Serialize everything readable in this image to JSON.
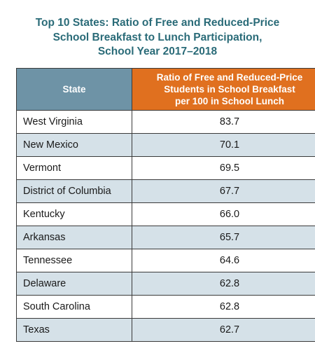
{
  "title_lines": [
    "Top 10 States: Ratio of Free and Reduced-Price",
    "School Breakfast to Lunch Participation,",
    "School Year 2017–2018"
  ],
  "colors": {
    "title": "#2a6b78",
    "header_state_bg": "#6e93a6",
    "header_ratio_bg": "#e0701f",
    "row_even_bg": "#ffffff",
    "row_odd_bg": "#d5e1e8",
    "border": "#3a3a3a"
  },
  "chart_data": {
    "type": "table",
    "title": "Top 10 States: Ratio of Free and Reduced-Price School Breakfast to Lunch Participation, School Year 2017–2018",
    "columns": [
      "State",
      "Ratio of Free and Reduced-Price Students in School Breakfast per 100 in School Lunch"
    ],
    "header_lines": [
      [
        "State"
      ],
      [
        "Ratio of Free and Reduced-Price",
        "Students in School Breakfast",
        "per 100 in School Lunch"
      ]
    ],
    "rows": [
      {
        "state": "West Virginia",
        "value": "83.7"
      },
      {
        "state": "New Mexico",
        "value": "70.1"
      },
      {
        "state": "Vermont",
        "value": "69.5"
      },
      {
        "state": "District of Columbia",
        "value": "67.7"
      },
      {
        "state": "Kentucky",
        "value": "66.0"
      },
      {
        "state": "Arkansas",
        "value": "65.7"
      },
      {
        "state": "Tennessee",
        "value": "64.6"
      },
      {
        "state": "Delaware",
        "value": "62.8"
      },
      {
        "state": "South Carolina",
        "value": "62.8"
      },
      {
        "state": "Texas",
        "value": "62.7"
      }
    ]
  }
}
